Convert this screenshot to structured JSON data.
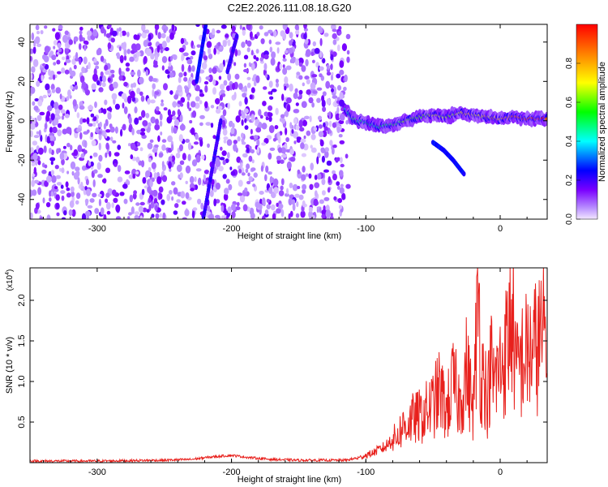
{
  "title": "C2E2.2026.111.08.18.G20",
  "chart_data": [
    {
      "type": "heatmap",
      "title": "C2E2.2026.111.08.18.G20",
      "xlabel": "Height of straight line (km)",
      "ylabel": "Frequency (Hz)",
      "xlim": [
        -350,
        35
      ],
      "ylim": [
        -50,
        49
      ],
      "xticks": [
        -300,
        -200,
        -100,
        0
      ],
      "yticks": [
        40,
        20,
        0,
        -20,
        -40
      ],
      "colorbar": {
        "label": "Normalized spectral amplitude",
        "range": [
          0,
          1
        ],
        "ticks": [
          0.0,
          0.2,
          0.4,
          0.6,
          0.8
        ],
        "stops": [
          "#f3e8ff",
          "#7a00ff",
          "#0000ff",
          "#00ffff",
          "#00ff00",
          "#ffff00",
          "#ff8000",
          "#ff0000"
        ]
      },
      "features": [
        {
          "name": "noise-region",
          "x_range": [
            -350,
            -113
          ],
          "f_range": [
            -50,
            49
          ],
          "amplitude": 0.25
        },
        {
          "name": "streak-1",
          "x": [
            -226,
            -219
          ],
          "f": [
            20,
            49
          ],
          "amplitude": 0.25
        },
        {
          "name": "streak-2",
          "x": [
            -203,
            -196
          ],
          "f": [
            25,
            43
          ],
          "amplitude": 0.2
        },
        {
          "name": "streak-3",
          "x": [
            -221,
            -208
          ],
          "f": [
            -50,
            0
          ],
          "amplitude": 0.2
        },
        {
          "name": "carrier",
          "x": [
            -115,
            -110,
            -100,
            -90,
            -80,
            -70,
            -60,
            -50,
            -40,
            -30,
            -20,
            -10,
            0,
            10,
            20,
            35
          ],
          "f": [
            6,
            1,
            -1,
            -3,
            -2,
            0,
            2,
            3,
            2,
            4,
            3,
            2,
            1,
            2,
            1,
            1
          ],
          "amplitude": [
            0.4,
            0.5,
            0.5,
            0.5,
            0.55,
            0.6,
            0.6,
            0.65,
            0.65,
            0.7,
            0.75,
            0.75,
            0.8,
            0.85,
            0.9,
            0.95
          ]
        },
        {
          "name": "secondary-trace",
          "x": [
            -50,
            -42,
            -35,
            -27
          ],
          "f": [
            -11,
            -15,
            -20,
            -27
          ],
          "amplitude": 0.25
        }
      ]
    },
    {
      "type": "line",
      "xlabel": "Height of straight line (km)",
      "ylabel": "SNR (10 * v/v)",
      "yscale_label": "(x10",
      "yscale_exp": "4",
      "xlim": [
        -350,
        35
      ],
      "ylim": [
        0,
        2.4
      ],
      "xticks": [
        -300,
        -200,
        -100,
        0
      ],
      "yticks": [
        0.5,
        1.0,
        1.5,
        2.0
      ],
      "series": [
        {
          "name": "SNR",
          "x": [
            -350,
            -300,
            -250,
            -230,
            -215,
            -200,
            -185,
            -170,
            -150,
            -130,
            -115,
            -105,
            -95,
            -85,
            -78,
            -72,
            -65,
            -58,
            -50,
            -45,
            -40,
            -35,
            -30,
            -25,
            -20,
            -16,
            -14,
            -12,
            -10,
            -7,
            -5,
            0,
            5,
            9,
            12,
            15,
            20,
            25,
            30,
            35
          ],
          "y": [
            0.02,
            0.02,
            0.03,
            0.04,
            0.07,
            0.09,
            0.06,
            0.04,
            0.03,
            0.03,
            0.03,
            0.06,
            0.12,
            0.2,
            0.35,
            0.5,
            0.6,
            0.65,
            0.8,
            1.0,
            0.7,
            1.1,
            0.8,
            1.3,
            0.7,
            2.4,
            1.0,
            1.5,
            0.7,
            1.4,
            1.1,
            1.3,
            1.6,
            2.1,
            1.2,
            1.4,
            1.5,
            1.55,
            1.7,
            1.75
          ]
        }
      ]
    }
  ]
}
